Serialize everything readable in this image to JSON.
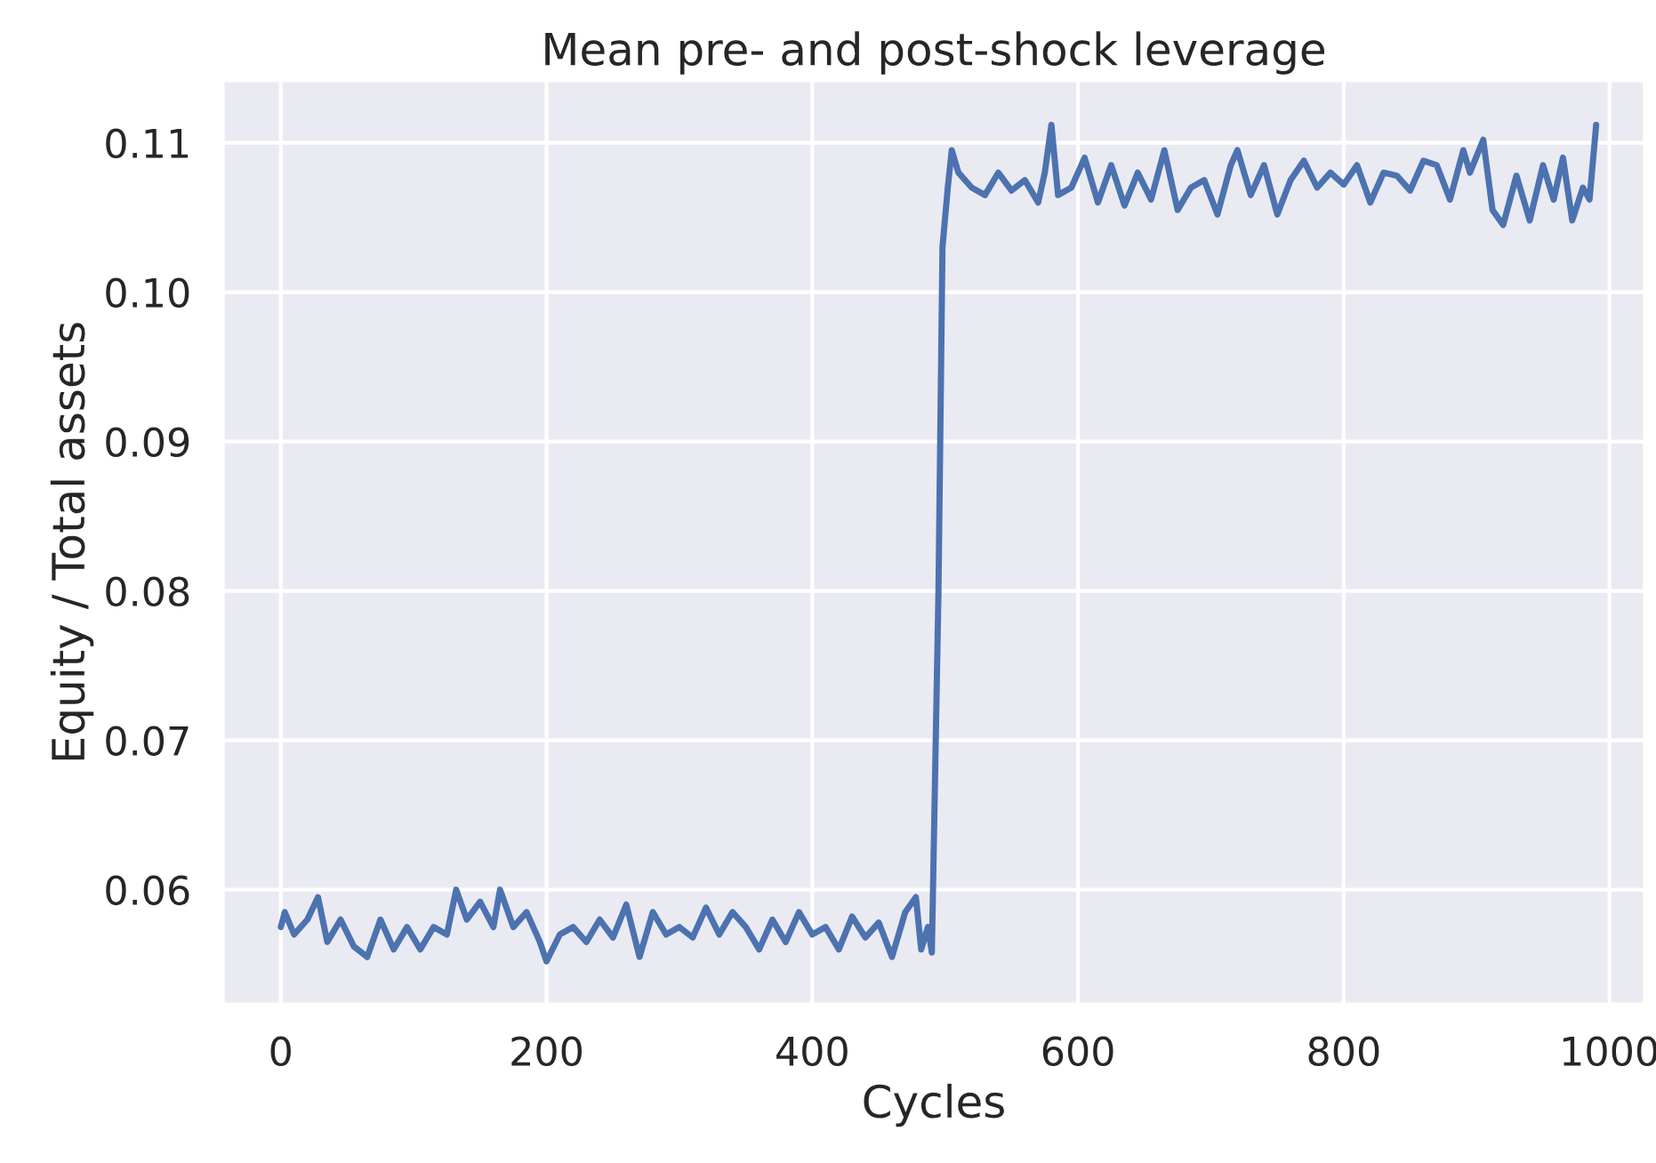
{
  "chart_data": {
    "type": "line",
    "title": "Mean pre- and post-shock leverage",
    "xlabel": "Cycles",
    "ylabel": "Equity / Total assets",
    "x": [
      0,
      3,
      10,
      20,
      28,
      35,
      45,
      55,
      65,
      75,
      85,
      95,
      105,
      115,
      125,
      132,
      140,
      150,
      160,
      165,
      175,
      185,
      195,
      200,
      210,
      220,
      230,
      240,
      250,
      260,
      270,
      280,
      290,
      300,
      310,
      320,
      330,
      340,
      350,
      360,
      370,
      380,
      390,
      400,
      410,
      420,
      430,
      440,
      450,
      460,
      470,
      478,
      482,
      487,
      490,
      495,
      498,
      502,
      505,
      510,
      520,
      530,
      540,
      550,
      560,
      570,
      575,
      580,
      585,
      595,
      605,
      615,
      625,
      635,
      645,
      655,
      665,
      675,
      685,
      695,
      705,
      715,
      720,
      730,
      740,
      750,
      760,
      770,
      780,
      790,
      800,
      810,
      820,
      830,
      840,
      850,
      860,
      870,
      880,
      890,
      895,
      905,
      912,
      920,
      930,
      940,
      950,
      958,
      965,
      972,
      980,
      985,
      990
    ],
    "series": [
      {
        "color": "#4c72b0",
        "values": [
          0.0575,
          0.0585,
          0.057,
          0.058,
          0.0595,
          0.0565,
          0.058,
          0.0562,
          0.0555,
          0.058,
          0.056,
          0.0575,
          0.056,
          0.0575,
          0.057,
          0.06,
          0.058,
          0.0592,
          0.0575,
          0.06,
          0.0575,
          0.0585,
          0.0565,
          0.0552,
          0.057,
          0.0575,
          0.0565,
          0.058,
          0.0568,
          0.059,
          0.0555,
          0.0585,
          0.057,
          0.0575,
          0.0568,
          0.0588,
          0.057,
          0.0585,
          0.0575,
          0.056,
          0.058,
          0.0565,
          0.0585,
          0.057,
          0.0575,
          0.056,
          0.0582,
          0.0568,
          0.0578,
          0.0555,
          0.0585,
          0.0595,
          0.056,
          0.0575,
          0.0558,
          0.08,
          0.103,
          0.107,
          0.1095,
          0.108,
          0.107,
          0.1065,
          0.108,
          0.1068,
          0.1075,
          0.106,
          0.108,
          0.1112,
          0.1065,
          0.107,
          0.109,
          0.106,
          0.1085,
          0.1058,
          0.108,
          0.1062,
          0.1095,
          0.1055,
          0.107,
          0.1075,
          0.1052,
          0.1085,
          0.1095,
          0.1065,
          0.1085,
          0.1052,
          0.1075,
          0.1088,
          0.107,
          0.108,
          0.1072,
          0.1085,
          0.106,
          0.108,
          0.1078,
          0.1068,
          0.1088,
          0.1085,
          0.1062,
          0.1095,
          0.108,
          0.1102,
          0.1055,
          0.1045,
          0.1078,
          0.1048,
          0.1085,
          0.1062,
          0.109,
          0.1048,
          0.107,
          0.1062,
          0.1112
        ]
      }
    ],
    "xlim": [
      -44,
      1027
    ],
    "ylim": [
      0.0523,
      0.1142
    ],
    "xticks": [
      0,
      200,
      400,
      600,
      800,
      1000
    ],
    "yticks": [
      {
        "value": 0.06,
        "label": "0.06"
      },
      {
        "value": 0.07,
        "label": "0.07"
      },
      {
        "value": 0.08,
        "label": "0.08"
      },
      {
        "value": 0.09,
        "label": "0.09"
      },
      {
        "value": 0.1,
        "label": "0.10"
      },
      {
        "value": 0.11,
        "label": "0.11"
      }
    ],
    "grid": true
  }
}
